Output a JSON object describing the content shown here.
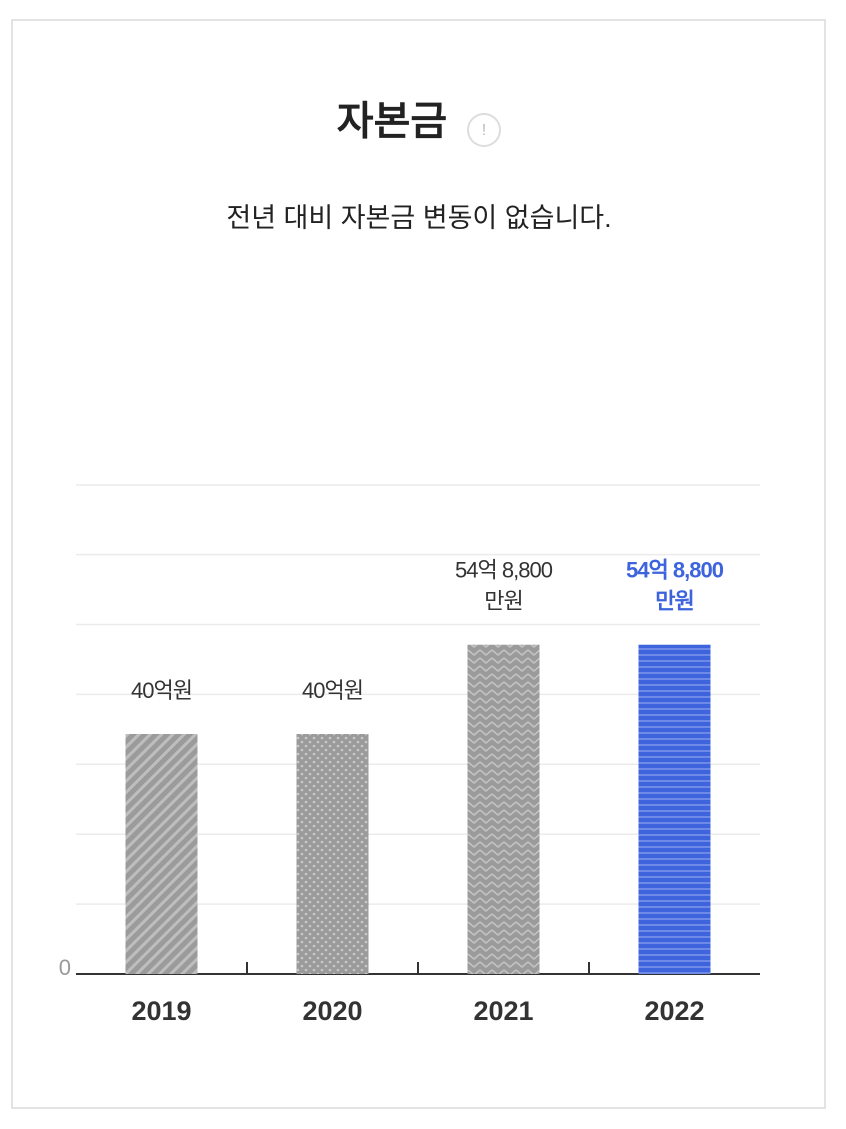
{
  "chart_data": {
    "type": "bar",
    "title": "자본금",
    "info_icon": "!",
    "subtitle": "전년 대비 자본금 변동이 없습니다.",
    "categories": [
      "2019",
      "2020",
      "2021",
      "2022"
    ],
    "values": [
      4000000000,
      4000000000,
      5488000000,
      5488000000
    ],
    "value_labels": [
      "40억원",
      "40억원",
      "54억 8,800\n만원",
      "54억 8,800\n만원"
    ],
    "colors": [
      "#9b9b9b",
      "#9b9b9b",
      "#9b9b9b",
      "#3d63dd"
    ],
    "highlight_index": 3,
    "ylim": [
      0,
      8150000000
    ],
    "yticks": [
      0
    ],
    "grid": true,
    "ygrid": [
      1165000000,
      2330000000,
      3495000000,
      4660000000,
      5825000000,
      6990000000,
      8150000000
    ]
  }
}
